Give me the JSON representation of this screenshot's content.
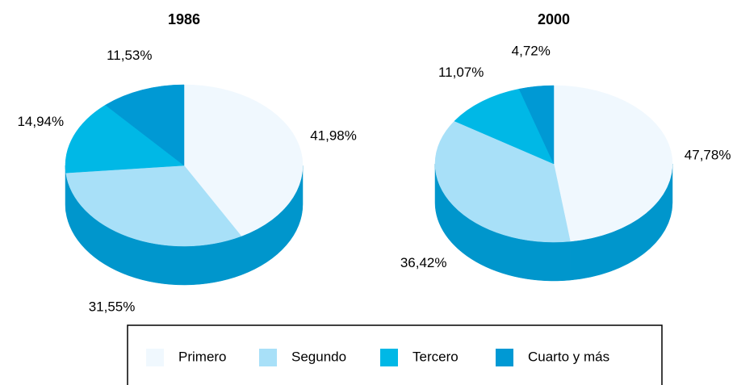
{
  "chart_data": [
    {
      "type": "pie3d",
      "title": "1986",
      "categories": [
        "Primero",
        "Segundo",
        "Tercero",
        "Cuarto y más"
      ],
      "values": [
        41.98,
        31.55,
        14.94,
        11.53
      ],
      "value_labels": [
        "41,98%",
        "31,55%",
        "14,94%",
        "11,53%"
      ],
      "colors": [
        "#f0f8fe",
        "#a8e0f8",
        "#00b8e6",
        "#0099d4"
      ],
      "side_color": "#0096cc"
    },
    {
      "type": "pie3d",
      "title": "2000",
      "categories": [
        "Primero",
        "Segundo",
        "Tercero",
        "Cuarto y más"
      ],
      "values": [
        47.78,
        36.42,
        11.07,
        4.72
      ],
      "value_labels": [
        "47,78%",
        "36,42%",
        "11,07%",
        "4,72%"
      ],
      "colors": [
        "#f0f8fe",
        "#a8e0f8",
        "#00b8e6",
        "#0099d4"
      ],
      "side_color": "#0096cc"
    }
  ]
}
